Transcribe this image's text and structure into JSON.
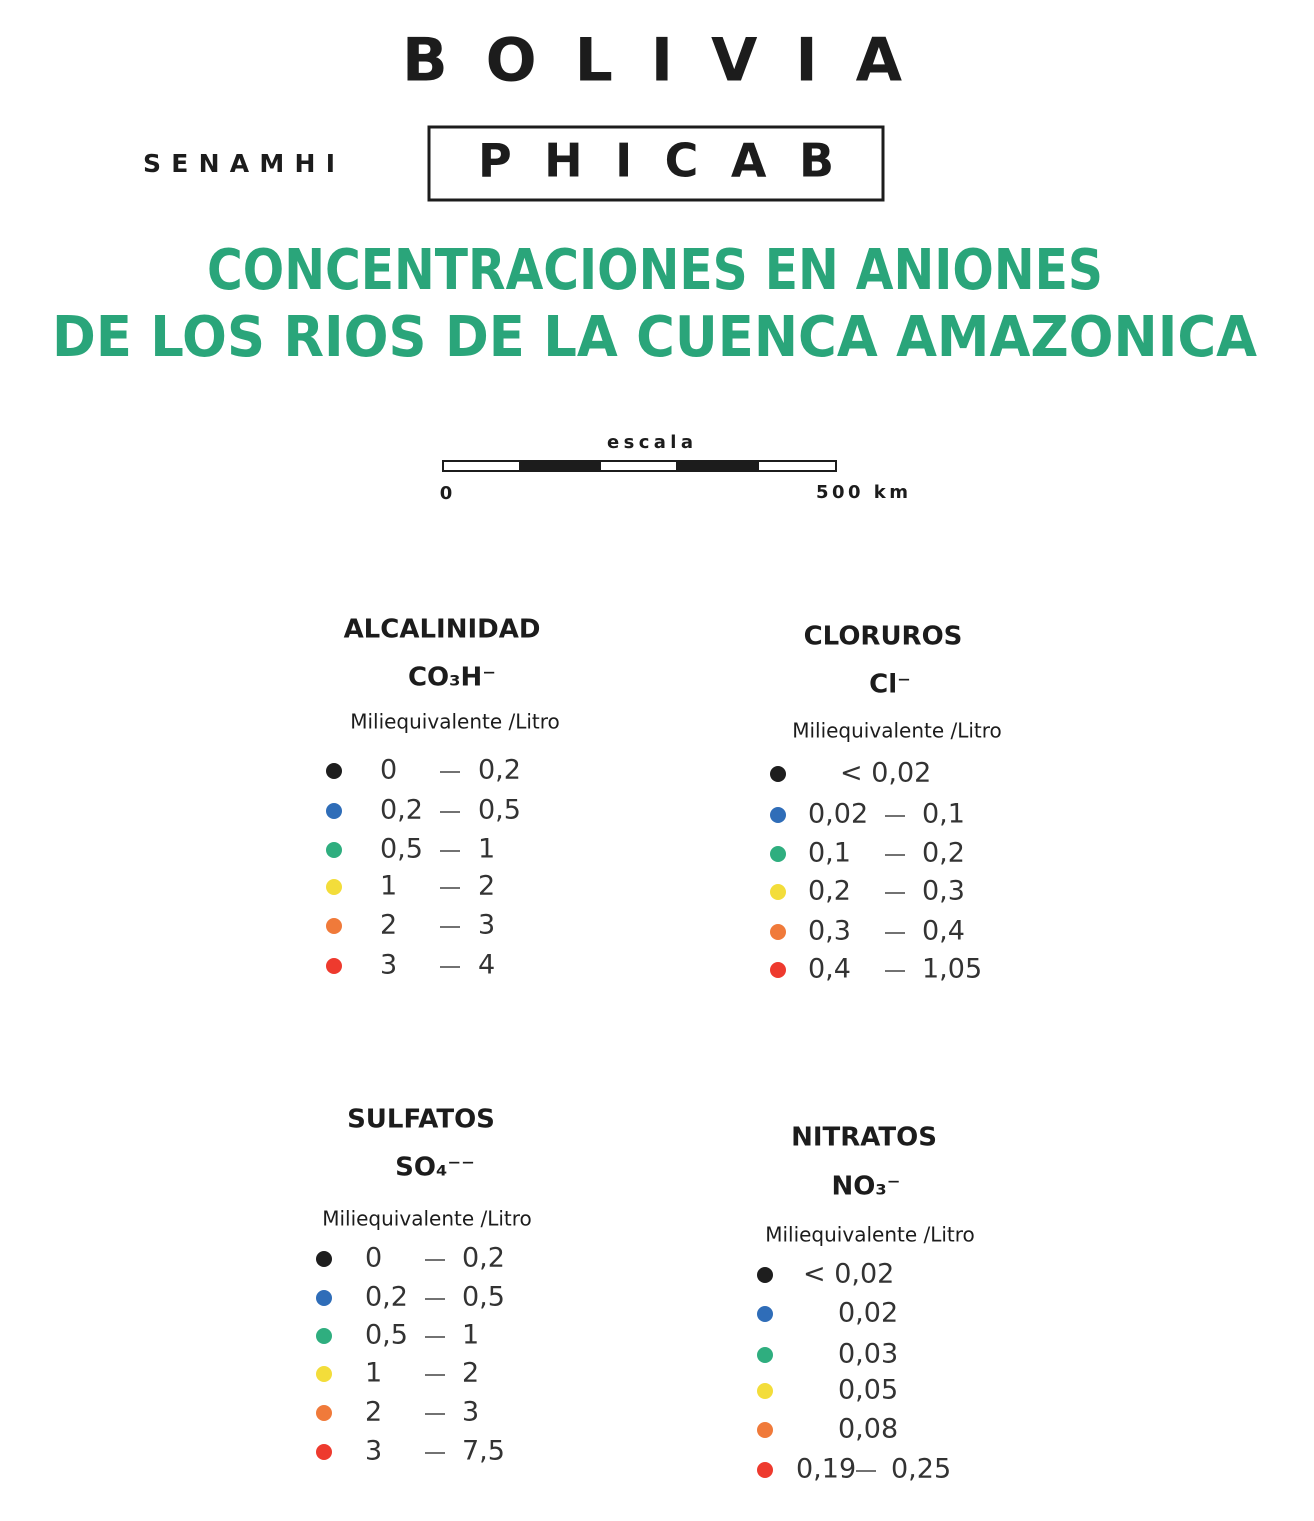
{
  "header": {
    "country": "BOLIVIA",
    "organization": "SENAMHI",
    "program": "PHICAB",
    "title_lines": [
      "CONCENTRACIONES EN ANIONES",
      "DE LOS RIOS DE LA CUENCA AMAZONICA"
    ]
  },
  "scale": {
    "label": "escala",
    "start": "0",
    "end": "500 km"
  },
  "legends": [
    {
      "title": "ALCALINIDAD",
      "formula": "CO₃H⁻",
      "unit": "Miliequivalente /Litro",
      "items": [
        {
          "from": "0",
          "to": "0,2",
          "color": "#1e1e1e"
        },
        {
          "from": "0,2",
          "to": "0,5",
          "color": "#2f6db8"
        },
        {
          "from": "0,5",
          "to": "1",
          "color": "#2fae7f"
        },
        {
          "from": "1",
          "to": "2",
          "color": "#f3dd3a"
        },
        {
          "from": "2",
          "to": "3",
          "color": "#f07a3a"
        },
        {
          "from": "3",
          "to": "4",
          "color": "#ee3a2e"
        }
      ]
    },
    {
      "title": "CLORUROS",
      "formula": "Cl⁻",
      "unit": "Miliequivalente /Litro",
      "items": [
        {
          "value": "< 0,02",
          "color": "#1e1e1e"
        },
        {
          "from": "0,02",
          "to": "0,1",
          "color": "#2f6db8"
        },
        {
          "from": "0,1",
          "to": "0,2",
          "color": "#2fae7f"
        },
        {
          "from": "0,2",
          "to": "0,3",
          "color": "#f3dd3a"
        },
        {
          "from": "0,3",
          "to": "0,4",
          "color": "#f07a3a"
        },
        {
          "from": "0,4",
          "to": "1,05",
          "color": "#ee3a2e"
        }
      ]
    },
    {
      "title": "SULFATOS",
      "formula": "SO₄⁻⁻",
      "unit": "Miliequivalente /Litro",
      "items": [
        {
          "from": "0",
          "to": "0,2",
          "color": "#1e1e1e"
        },
        {
          "from": "0,2",
          "to": "0,5",
          "color": "#2f6db8"
        },
        {
          "from": "0,5",
          "to": "1",
          "color": "#2fae7f"
        },
        {
          "from": "1",
          "to": "2",
          "color": "#f3dd3a"
        },
        {
          "from": "2",
          "to": "3",
          "color": "#f07a3a"
        },
        {
          "from": "3",
          "to": "7,5",
          "color": "#ee3a2e"
        }
      ]
    },
    {
      "title": "NITRATOS",
      "formula": "NO₃⁻",
      "unit": "Miliequivalente /Litro",
      "items": [
        {
          "value": "< 0,02",
          "color": "#1e1e1e"
        },
        {
          "value": "0,02",
          "color": "#2f6db8"
        },
        {
          "value": "0,03",
          "color": "#2fae7f"
        },
        {
          "value": "0,05",
          "color": "#f3dd3a"
        },
        {
          "value": "0,08",
          "color": "#f07a3a"
        },
        {
          "from": "0,19",
          "to": "0,25",
          "color": "#ee3a2e"
        }
      ]
    }
  ]
}
